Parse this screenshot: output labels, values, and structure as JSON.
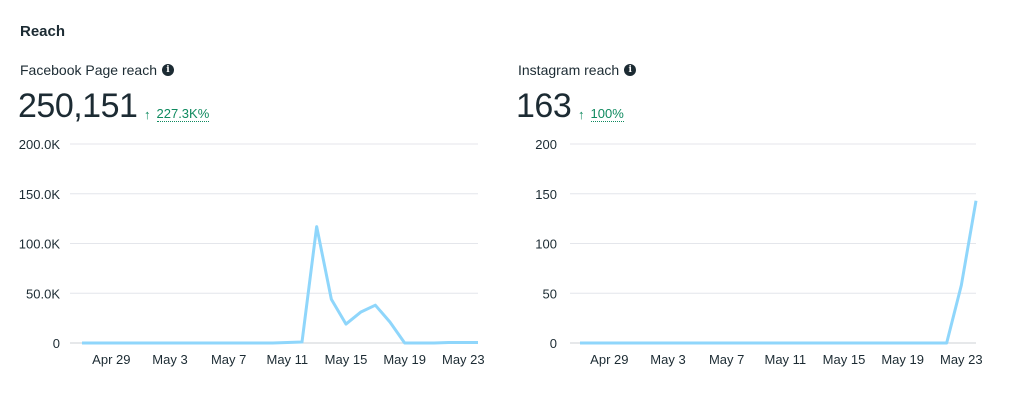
{
  "section_title": "Reach",
  "cards": [
    {
      "title": "Facebook Page reach",
      "value": "250,151",
      "change": "227.3K%",
      "change_icon": "arrow-up-icon"
    },
    {
      "title": "Instagram reach",
      "value": "163",
      "change": "100%",
      "change_icon": "arrow-up-icon"
    }
  ],
  "colors": {
    "line": "#8fd6fb",
    "grid": "#e4e6eb",
    "positive": "#0f8a5f"
  },
  "chart_data": [
    {
      "type": "line",
      "title": "Facebook Page reach",
      "x": [
        "Apr 27",
        "Apr 28",
        "Apr 29",
        "Apr 30",
        "May 1",
        "May 2",
        "May 3",
        "May 4",
        "May 5",
        "May 6",
        "May 7",
        "May 8",
        "May 9",
        "May 10",
        "May 11",
        "May 12",
        "May 13",
        "May 14",
        "May 15",
        "May 16",
        "May 17",
        "May 18",
        "May 19",
        "May 20",
        "May 21",
        "May 22",
        "May 23",
        "May 24"
      ],
      "values": [
        0,
        0,
        0,
        0,
        0,
        0,
        0,
        0,
        0,
        0,
        0,
        0,
        0,
        0,
        500,
        1000,
        117000,
        44000,
        19000,
        31000,
        38000,
        21000,
        0,
        0,
        0,
        500,
        500,
        500
      ],
      "ylim": [
        0,
        200000
      ],
      "yticks": [
        0,
        50000,
        100000,
        150000,
        200000
      ],
      "ytick_labels": [
        "0",
        "50.0K",
        "100.0K",
        "150.0K",
        "200.0K"
      ],
      "xtick_labels": [
        "Apr 29",
        "May 3",
        "May 7",
        "May 11",
        "May 15",
        "May 19",
        "May 23"
      ],
      "grid": true
    },
    {
      "type": "line",
      "title": "Instagram reach",
      "x": [
        "Apr 27",
        "Apr 28",
        "Apr 29",
        "Apr 30",
        "May 1",
        "May 2",
        "May 3",
        "May 4",
        "May 5",
        "May 6",
        "May 7",
        "May 8",
        "May 9",
        "May 10",
        "May 11",
        "May 12",
        "May 13",
        "May 14",
        "May 15",
        "May 16",
        "May 17",
        "May 18",
        "May 19",
        "May 20",
        "May 21",
        "May 22",
        "May 23",
        "May 24"
      ],
      "values": [
        0,
        0,
        0,
        0,
        0,
        0,
        0,
        0,
        0,
        0,
        0,
        0,
        0,
        0,
        0,
        0,
        0,
        0,
        0,
        0,
        0,
        0,
        0,
        0,
        0,
        0,
        58,
        143
      ],
      "ylim": [
        0,
        200
      ],
      "yticks": [
        0,
        50,
        100,
        150,
        200
      ],
      "ytick_labels": [
        "0",
        "50",
        "100",
        "150",
        "200"
      ],
      "xtick_labels": [
        "Apr 29",
        "May 3",
        "May 7",
        "May 11",
        "May 15",
        "May 19",
        "May 23"
      ],
      "grid": true
    }
  ]
}
